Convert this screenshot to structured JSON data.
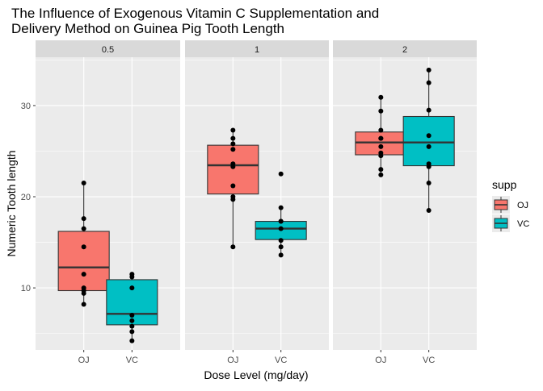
{
  "chart_data": {
    "type": "boxplot",
    "title_lines": [
      "The Influence of Exogenous Vitamin C Supplementation and",
      " Delivery Method on Guinea Pig Tooth Length"
    ],
    "xlabel": "Dose Level (mg/day)",
    "ylabel": "Numeric Tooth length",
    "ylim": [
      3.2,
      35.3
    ],
    "yticks": [
      10,
      20,
      30
    ],
    "categories": [
      "OJ",
      "VC"
    ],
    "legend": {
      "title": "supp",
      "position": "right",
      "entries": [
        {
          "label": "OJ",
          "color": "#F8766D"
        },
        {
          "label": "VC",
          "color": "#00BFC4"
        }
      ]
    },
    "facets": [
      {
        "label": "0.5",
        "boxes": [
          {
            "supp": "OJ",
            "min": 8.2,
            "q1": 9.7,
            "median": 12.25,
            "q3": 16.2,
            "max": 21.5,
            "points": [
              8.2,
              9.4,
              9.7,
              10.0,
              11.5,
              14.5,
              16.5,
              17.6,
              21.5
            ]
          },
          {
            "supp": "VC",
            "min": 4.2,
            "q1": 5.95,
            "median": 7.15,
            "q3": 10.9,
            "max": 11.5,
            "points": [
              4.2,
              5.2,
              5.8,
              6.4,
              7.0,
              10.0,
              11.2,
              11.5
            ]
          }
        ]
      },
      {
        "label": "1",
        "boxes": [
          {
            "supp": "OJ",
            "min": 14.5,
            "q1": 20.3,
            "median": 23.45,
            "q3": 25.65,
            "max": 27.3,
            "points": [
              14.5,
              19.7,
              20.0,
              21.2,
              23.3,
              23.6,
              25.2,
              25.8,
              26.4,
              27.3
            ]
          },
          {
            "supp": "VC",
            "min": 13.6,
            "q1": 15.3,
            "median": 16.5,
            "q3": 17.3,
            "max": 18.8,
            "points": [
              13.6,
              14.5,
              15.2,
              16.5,
              17.3,
              17.3,
              18.8,
              22.5
            ]
          }
        ]
      },
      {
        "label": "2",
        "boxes": [
          {
            "supp": "OJ",
            "min": 22.4,
            "q1": 24.6,
            "median": 25.95,
            "q3": 27.1,
            "max": 30.9,
            "points": [
              22.4,
              23.0,
              24.5,
              24.8,
              25.5,
              26.4,
              26.4,
              27.3,
              29.4,
              30.9
            ]
          },
          {
            "supp": "VC",
            "min": 18.5,
            "q1": 23.4,
            "median": 25.95,
            "q3": 28.8,
            "max": 33.9,
            "points": [
              18.5,
              21.5,
              23.3,
              23.6,
              25.5,
              26.7,
              29.5,
              32.5,
              33.9
            ]
          }
        ]
      }
    ],
    "grid": true,
    "colors": {
      "panel_bg": "#EBEBEB",
      "strip_bg": "#D9D9D9",
      "grid": "#FFFFFF",
      "box_outline": "#333333",
      "point": "#000000"
    }
  }
}
